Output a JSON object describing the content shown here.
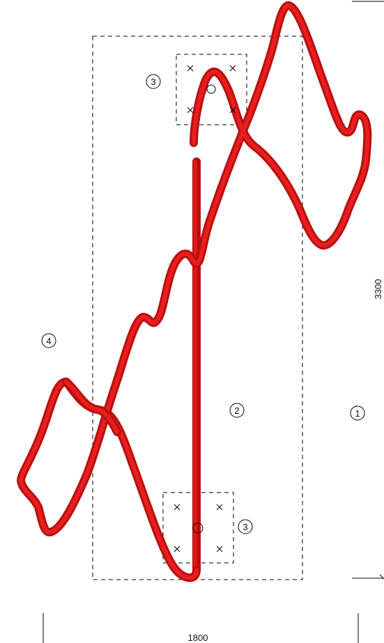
{
  "diagram": {
    "dimensions": {
      "width_label": "1800",
      "height_label": "3300"
    },
    "region_labels": {
      "outer_region": "1",
      "inner_region": "2",
      "anchor_zone_top": "3",
      "anchor_zone_bottom": "3",
      "sensor_path": "4"
    },
    "colors": {
      "sensor_path": "#d81414",
      "sensor_path_shade": "#9a0c0c",
      "boundary": "#000000"
    }
  }
}
